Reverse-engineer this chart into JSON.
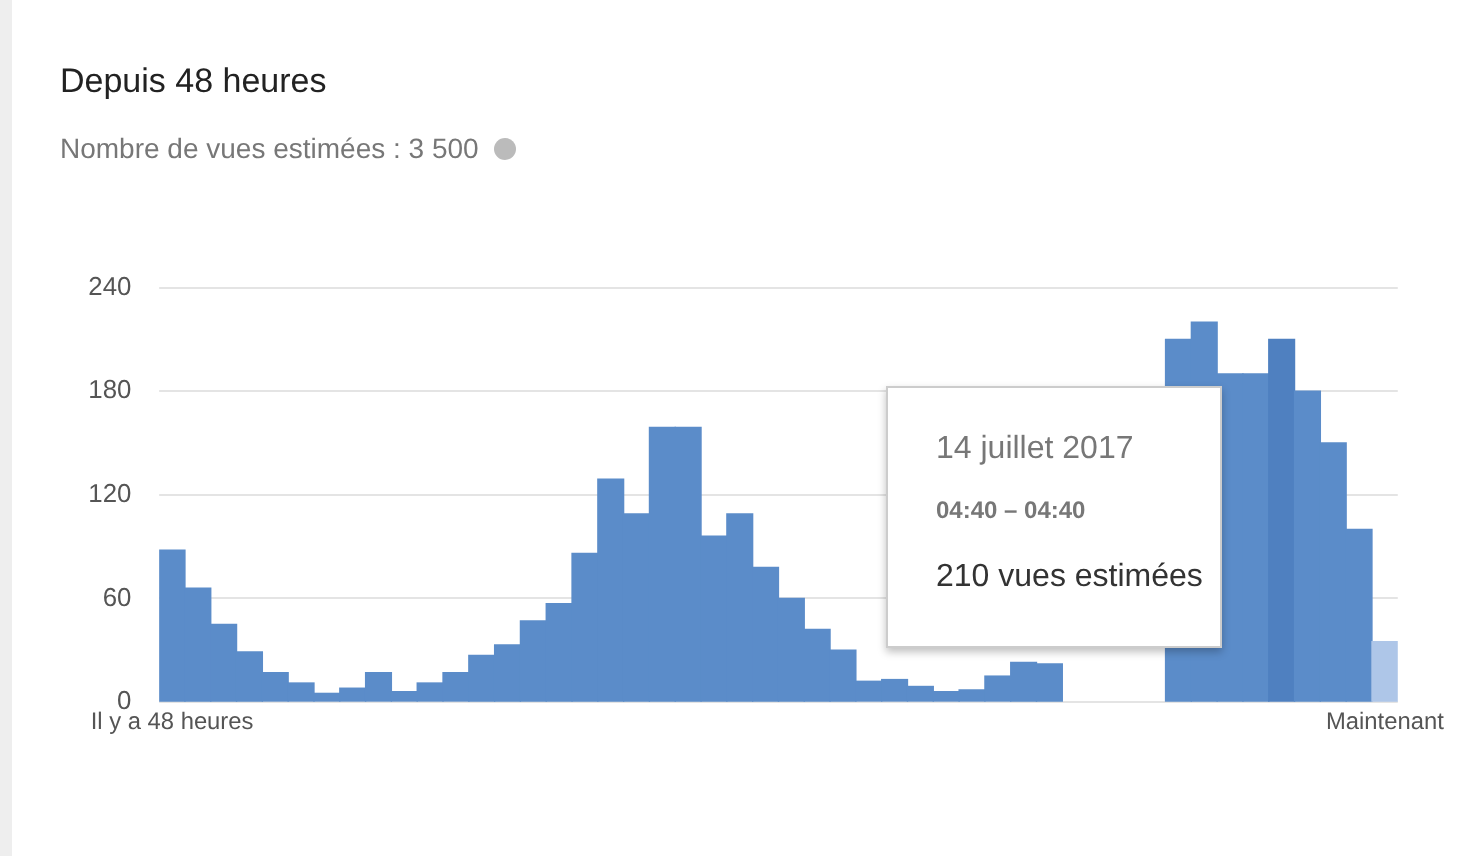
{
  "chart_data": {
    "type": "bar",
    "title": "Depuis 48 heures",
    "subtitle": "Nombre de vues estimées : 3 500",
    "categories": [
      "Il y a 48 heures",
      null,
      null,
      null,
      null,
      null,
      null,
      null,
      null,
      null,
      null,
      null,
      null,
      null,
      null,
      null,
      null,
      null,
      null,
      null,
      null,
      null,
      null,
      null,
      null,
      null,
      null,
      null,
      null,
      null,
      null,
      null,
      null,
      null,
      null,
      null,
      null,
      null,
      null,
      null,
      null,
      null,
      null,
      null,
      null,
      null,
      null,
      "Maintenant"
    ],
    "values": [
      88,
      66,
      45,
      29,
      17,
      11,
      5,
      8,
      17,
      6,
      11,
      17,
      27,
      33,
      47,
      57,
      86,
      129,
      109,
      159,
      159,
      96,
      109,
      78,
      60,
      42,
      30,
      12,
      13,
      9,
      6,
      7,
      15,
      23,
      22,
      null,
      null,
      null,
      null,
      210,
      220,
      190,
      190,
      210,
      180,
      150,
      100,
      35
    ],
    "colors": [
      "#5b8cc9",
      "#5b8cc9",
      "#5b8cc9",
      "#5b8cc9",
      "#5b8cc9",
      "#5b8cc9",
      "#5b8cc9",
      "#5b8cc9",
      "#5b8cc9",
      "#5b8cc9",
      "#5b8cc9",
      "#5b8cc9",
      "#5b8cc9",
      "#5b8cc9",
      "#5b8cc9",
      "#5b8cc9",
      "#5b8cc9",
      "#5b8cc9",
      "#5b8cc9",
      "#5b8cc9",
      "#5b8cc9",
      "#5b8cc9",
      "#5b8cc9",
      "#5b8cc9",
      "#5b8cc9",
      "#5b8cc9",
      "#5b8cc9",
      "#5b8cc9",
      "#5b8cc9",
      "#5b8cc9",
      "#5b8cc9",
      "#5b8cc9",
      "#5b8cc9",
      "#5b8cc9",
      "#5b8cc9",
      "#5b8cc9",
      "#5b8cc9",
      "#5b8cc9",
      "#5b8cc9",
      "#5b8cc9",
      "#5b8cc9",
      "#5b8cc9",
      "#5b8cc9",
      "#4f80c0",
      "#5b8cc9",
      "#5b8cc9",
      "#5b8cc9",
      "#aec6e8"
    ],
    "ylim": [
      0,
      240
    ],
    "yticks": [
      0,
      60,
      120,
      180,
      240
    ],
    "grid": "y",
    "annotations": [
      "14 juillet 2017",
      "04:40 – 04:40",
      "210 vues estimées"
    ]
  }
}
